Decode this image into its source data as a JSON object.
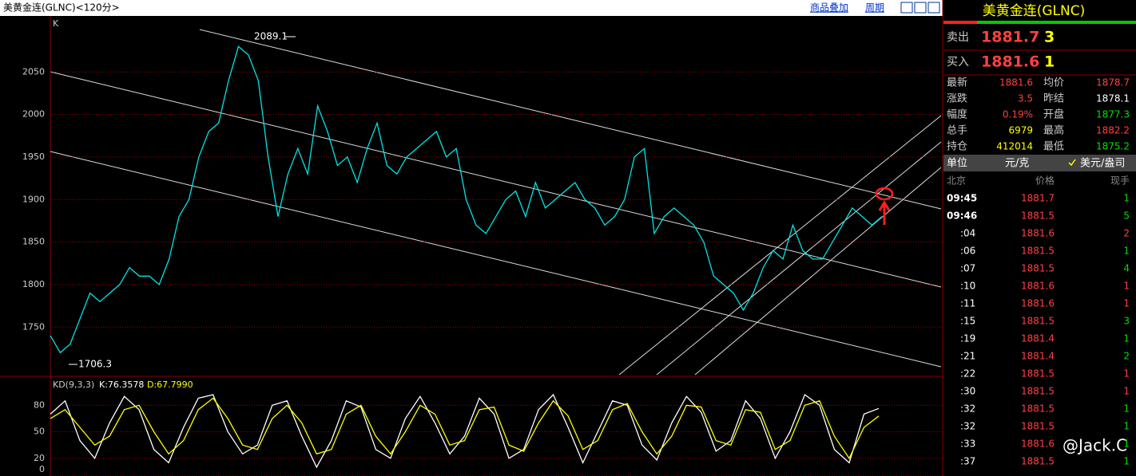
{
  "header": {
    "title": "美黄金连(GLNC)<120分>",
    "overlay": "商品叠加",
    "period": "周期"
  },
  "chart_data": [
    {
      "type": "line",
      "title": "K",
      "color": "#00e5e5",
      "values": [
        1740,
        1720,
        1730,
        1760,
        1790,
        1780,
        1790,
        1800,
        1820,
        1810,
        1810,
        1800,
        1830,
        1880,
        1900,
        1950,
        1980,
        1990,
        2040,
        2080,
        2070,
        2040,
        1950,
        1880,
        1930,
        1960,
        1930,
        2010,
        1980,
        1940,
        1950,
        1920,
        1960,
        1990,
        1940,
        1930,
        1950,
        1960,
        1970,
        1980,
        1950,
        1960,
        1900,
        1870,
        1860,
        1880,
        1900,
        1910,
        1880,
        1920,
        1890,
        1900,
        1910,
        1920,
        1900,
        1890,
        1870,
        1880,
        1900,
        1950,
        1960,
        1860,
        1880,
        1890,
        1880,
        1870,
        1850,
        1810,
        1800,
        1790,
        1770,
        1790,
        1820,
        1840,
        1830,
        1870,
        1840,
        1830,
        1830,
        1850,
        1870,
        1890,
        1880,
        1870,
        1880
      ],
      "ylim": [
        1694,
        2114
      ],
      "yticks": [
        1750,
        1800,
        1850,
        1900,
        1950,
        2000,
        2050
      ],
      "grid": true,
      "annotations": [
        "2089.1",
        "1706.3"
      ]
    },
    {
      "type": "line",
      "title": "KD(9,3,3)",
      "series": [
        {
          "name": "K:76.3578",
          "color": "#ffffff",
          "values": [
            70,
            85,
            40,
            20,
            60,
            90,
            75,
            30,
            15,
            55,
            88,
            92,
            50,
            25,
            35,
            80,
            85,
            45,
            10,
            40,
            85,
            78,
            30,
            20,
            65,
            90,
            60,
            25,
            45,
            88,
            70,
            20,
            30,
            75,
            92,
            55,
            15,
            50,
            85,
            80,
            35,
            18,
            60,
            90,
            72,
            28,
            40,
            85,
            65,
            20,
            50,
            92,
            80,
            30,
            15,
            70,
            76.36
          ]
        },
        {
          "name": "D:67.7990",
          "color": "#ffff00",
          "values": [
            65,
            75,
            55,
            35,
            45,
            75,
            80,
            50,
            25,
            40,
            75,
            88,
            65,
            35,
            30,
            65,
            80,
            60,
            25,
            30,
            70,
            80,
            45,
            25,
            50,
            80,
            70,
            35,
            40,
            75,
            78,
            35,
            28,
            60,
            85,
            68,
            30,
            40,
            75,
            82,
            50,
            25,
            45,
            80,
            78,
            40,
            35,
            75,
            72,
            30,
            40,
            80,
            85,
            45,
            20,
            55,
            67.8
          ]
        }
      ],
      "ylim": [
        0,
        110
      ],
      "yticks": [
        0,
        20,
        50,
        80
      ],
      "grid": true
    }
  ],
  "quote": {
    "name": "美黄金连(GLNC)",
    "sell_label": "卖出",
    "sell_price": "1881.7",
    "sell_qty": "3",
    "buy_label": "买入",
    "buy_price": "1881.6",
    "buy_qty": "1",
    "stats": [
      [
        "最新",
        "1881.6",
        "均价",
        "1878.7"
      ],
      [
        "涨跌",
        "3.5",
        "昨结",
        "1878.1"
      ],
      [
        "幅度",
        "0.19%",
        "开盘",
        "1877.3"
      ],
      [
        "总手",
        "6979",
        "最高",
        "1882.2"
      ],
      [
        "持仓",
        "412014",
        "最低",
        "1875.2"
      ]
    ],
    "stat_colors": [
      [
        "#ff4040",
        "#ff4040"
      ],
      [
        "#ff4040",
        "#ffffff"
      ],
      [
        "#ff4040",
        "#00e000"
      ],
      [
        "#ffff00",
        "#ff4040"
      ],
      [
        "#ffff00",
        "#00e000"
      ]
    ],
    "unit_label": "单位",
    "unit": "元/克",
    "alt_unit": "美元/盎司"
  },
  "ticks": {
    "columns": [
      "北京",
      "价格",
      "现手"
    ],
    "rows": [
      [
        "09:45",
        "1881.7",
        "1"
      ],
      [
        "09:46",
        "1881.5",
        "5"
      ],
      [
        ":04",
        "1881.6",
        "2"
      ],
      [
        ":06",
        "1881.5",
        "1"
      ],
      [
        ":07",
        "1881.5",
        "4"
      ],
      [
        ":10",
        "1881.6",
        "1"
      ],
      [
        ":11",
        "1881.6",
        "1"
      ],
      [
        ":15",
        "1881.5",
        "3"
      ],
      [
        ":19",
        "1881.4",
        "1"
      ],
      [
        ":21",
        "1881.4",
        "2"
      ],
      [
        ":22",
        "1881.5",
        "1"
      ],
      [
        ":30",
        "1881.5",
        "1"
      ],
      [
        ":32",
        "1881.5",
        "1"
      ],
      [
        ":32",
        "1881.5",
        "1"
      ],
      [
        ":33",
        "1881.6",
        "1"
      ],
      [
        ":37",
        "1881.5",
        "1"
      ]
    ],
    "qty_colors": [
      "#00e000",
      "#00e000",
      "#ff4040",
      "#00e000",
      "#00e000",
      "#ff4040",
      "#ff4040",
      "#00e000",
      "#00e000",
      "#00e000",
      "#ff4040",
      "#ff4040",
      "#00e000",
      "#00e000",
      "#00e000",
      "#00e000"
    ]
  },
  "watermark": "@Jack.C"
}
